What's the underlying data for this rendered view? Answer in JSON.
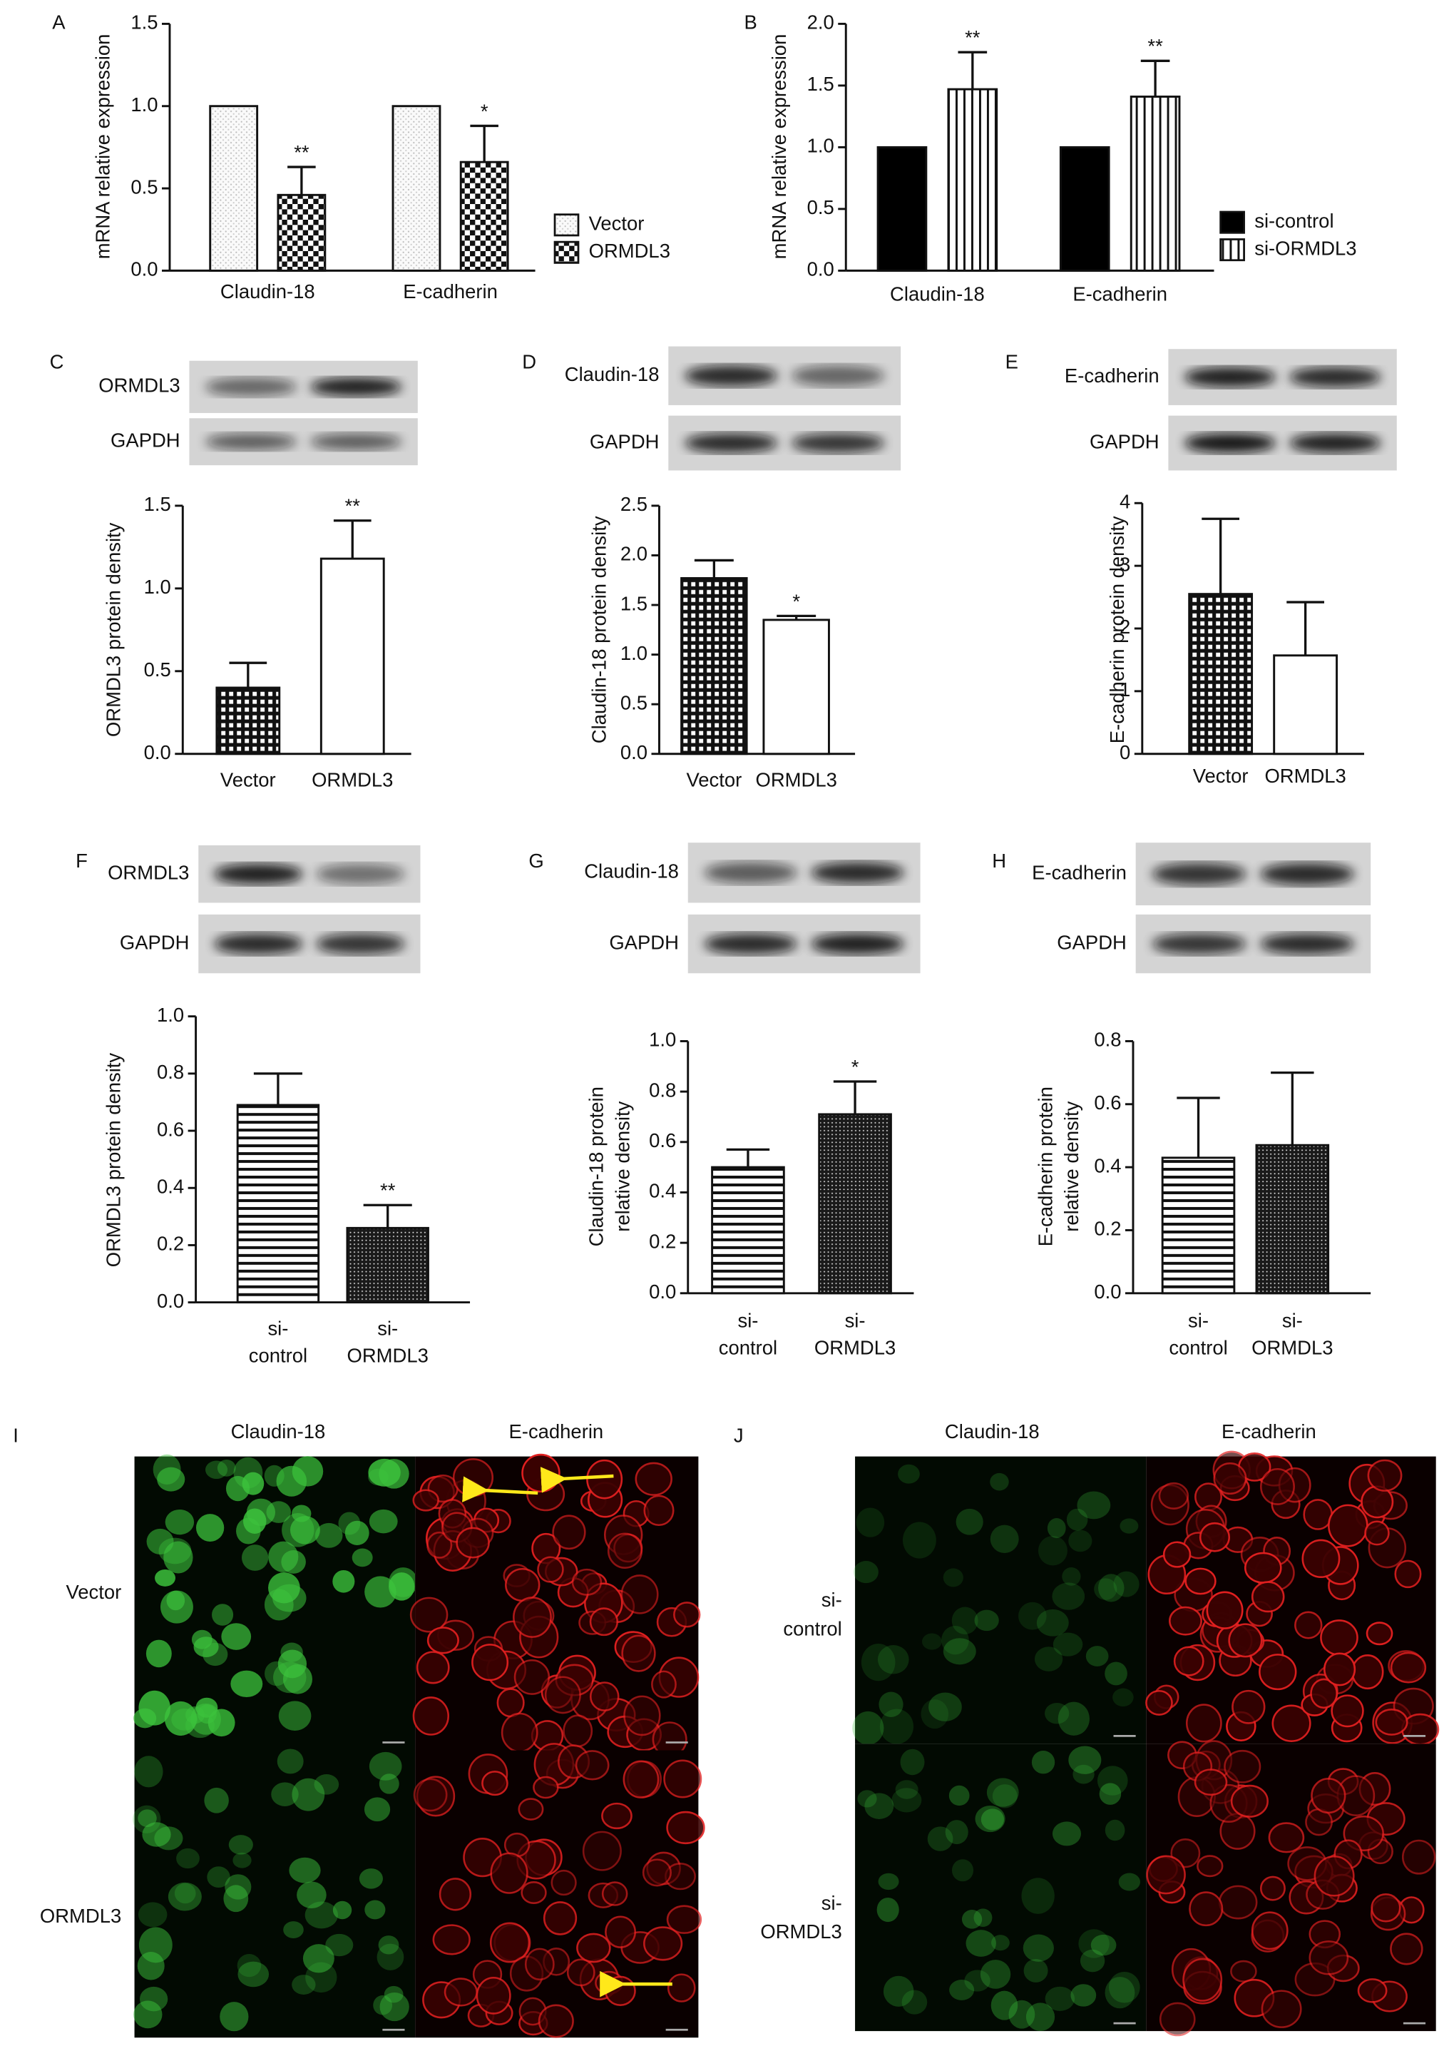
{
  "panel_letters": [
    "A",
    "B",
    "C",
    "D",
    "E",
    "F",
    "G",
    "H",
    "I",
    "J"
  ],
  "chart_data": [
    {
      "type": "bar",
      "ylabel": "mRNA relative expression",
      "categories": [
        "Claudin-18",
        "E-cadherin"
      ],
      "series": [
        {
          "name": "Vector",
          "color": "#ffffff",
          "pattern": "dots",
          "values": [
            1,
            1
          ]
        },
        {
          "name": "ORMDL3",
          "color": "#000000",
          "pattern": "checker",
          "values": [
            0.46,
            0.66
          ],
          "errors": [
            0.17,
            0.22
          ],
          "significance": [
            "**",
            "*"
          ]
        }
      ],
      "ylim": [
        0,
        1.5
      ],
      "yticks": [
        {
          "value": 0,
          "label": "0.0"
        },
        0.5,
        {
          "value": 1,
          "label": "1.0"
        },
        1.5
      ],
      "legend": "right"
    },
    {
      "type": "bar",
      "ylabel": "mRNA relative expression",
      "categories": [
        "Claudin-18",
        "E-cadherin"
      ],
      "series": [
        {
          "name": "si-control",
          "color": "#000000",
          "pattern": "solid",
          "values": [
            1,
            1
          ]
        },
        {
          "name": "si-ORMDL3",
          "color": "#000000",
          "pattern": "vertical-stripes",
          "values": [
            1.47,
            1.41
          ],
          "errors": [
            0.3,
            0.29
          ],
          "significance": [
            "**",
            "**"
          ]
        }
      ],
      "ylim": [
        0,
        2
      ],
      "yticks": [
        {
          "value": 0,
          "label": "0.0"
        },
        0.5,
        {
          "value": 1,
          "label": "1.0"
        },
        1.5,
        {
          "value": 2,
          "label": "2.0"
        }
      ],
      "legend": "right"
    },
    {
      "type": "bar",
      "ylabel": "ORMDL3 protein density",
      "categories": [
        "Vector",
        "ORMDL3"
      ],
      "values": [
        0.4,
        1.18
      ],
      "errors": [
        0.15,
        0.23
      ],
      "significance": [
        null,
        "**"
      ],
      "colors": [
        "#000000",
        "#000000"
      ],
      "patterns": [
        "grid",
        "none"
      ],
      "ylim": [
        0,
        1.5
      ],
      "yticks": [
        {
          "value": 0,
          "label": "0.0"
        },
        0.5,
        {
          "value": 1,
          "label": "1.0"
        },
        1.5
      ]
    },
    {
      "type": "bar",
      "ylabel": "Claudin-18 protein density",
      "categories": [
        "Vector",
        "ORMDL3"
      ],
      "values": [
        1.77,
        1.35
      ],
      "errors": [
        0.18,
        0.04
      ],
      "significance": [
        null,
        "*"
      ],
      "colors": [
        "#000000",
        "#000000"
      ],
      "patterns": [
        "grid",
        "none"
      ],
      "ylim": [
        0,
        2.5
      ],
      "yticks": [
        {
          "value": 0,
          "label": "0.0"
        },
        0.5,
        {
          "value": 1,
          "label": "1.0"
        },
        1.5,
        {
          "value": 2,
          "label": "2.0"
        },
        2.5
      ]
    },
    {
      "type": "bar",
      "ylabel": "E-cadherin protein density",
      "categories": [
        "Vector",
        "ORMDL3"
      ],
      "values": [
        2.55,
        1.57
      ],
      "errors": [
        1.2,
        0.85
      ],
      "colors": [
        "#000000",
        "#000000"
      ],
      "patterns": [
        "grid",
        "none"
      ],
      "ylim": [
        0,
        4
      ],
      "yticks": [
        0,
        1,
        2,
        3,
        4
      ]
    },
    {
      "type": "bar",
      "ylabel": "ORMDL3 protein density",
      "categories": [
        [
          "si-",
          "control"
        ],
        [
          "si-",
          "ORMDL3"
        ]
      ],
      "values": [
        0.69,
        0.26
      ],
      "errors": [
        0.11,
        0.08
      ],
      "significance": [
        null,
        "**"
      ],
      "colors": [
        "#000000",
        "#000000"
      ],
      "patterns": [
        "horizontal-stripes",
        "dense-dots"
      ],
      "ylim": [
        0,
        1
      ],
      "yticks": [
        {
          "value": 0,
          "label": "0.0"
        },
        0.2,
        0.4,
        0.6,
        0.8,
        {
          "value": 1,
          "label": "1.0"
        }
      ]
    },
    {
      "type": "bar",
      "ylabel": [
        "Claudin-18 protein",
        "relative density"
      ],
      "categories": [
        [
          "si-",
          "control"
        ],
        [
          "si-",
          "ORMDL3"
        ]
      ],
      "values": [
        0.5,
        0.71
      ],
      "errors": [
        0.07,
        0.13
      ],
      "significance": [
        null,
        "*"
      ],
      "colors": [
        "#000000",
        "#000000"
      ],
      "patterns": [
        "horizontal-stripes",
        "dense-dots"
      ],
      "ylim": [
        0,
        1
      ],
      "yticks": [
        {
          "value": 0,
          "label": "0.0"
        },
        0.2,
        0.4,
        0.6,
        0.8,
        {
          "value": 1,
          "label": "1.0"
        }
      ]
    },
    {
      "type": "bar",
      "ylabel": [
        "E-cadherin protein",
        "relative density"
      ],
      "categories": [
        [
          "si-",
          "control"
        ],
        [
          "si-",
          "ORMDL3"
        ]
      ],
      "values": [
        0.43,
        0.47
      ],
      "errors": [
        0.19,
        0.23
      ],
      "colors": [
        "#000000",
        "#000000"
      ],
      "patterns": [
        "horizontal-stripes",
        "dense-dots"
      ],
      "ylim": [
        0,
        0.8
      ],
      "yticks": [
        {
          "value": 0,
          "label": "0.0"
        },
        0.2,
        0.4,
        0.6,
        0.8
      ]
    }
  ],
  "blot_labels": [
    [
      "ORMDL3",
      "GAPDH"
    ],
    [
      "Claudin-18",
      "GAPDH"
    ],
    [
      "E-cadherin",
      "GAPDH"
    ],
    [
      "ORMDL3",
      "GAPDH"
    ],
    [
      "Claudin-18",
      "GAPDH"
    ],
    [
      "E-cadherin",
      "GAPDH"
    ]
  ],
  "micrographs": [
    {
      "columns": [
        "Claudin-18",
        "E-cadherin"
      ],
      "rows": [
        [
          "Vector"
        ],
        [
          "ORMDL3"
        ]
      ]
    },
    {
      "columns": [
        "Claudin-18",
        "E-cadherin"
      ],
      "rows": [
        [
          "si-",
          "control"
        ],
        [
          "si-",
          "ORMDL3"
        ]
      ]
    }
  ]
}
